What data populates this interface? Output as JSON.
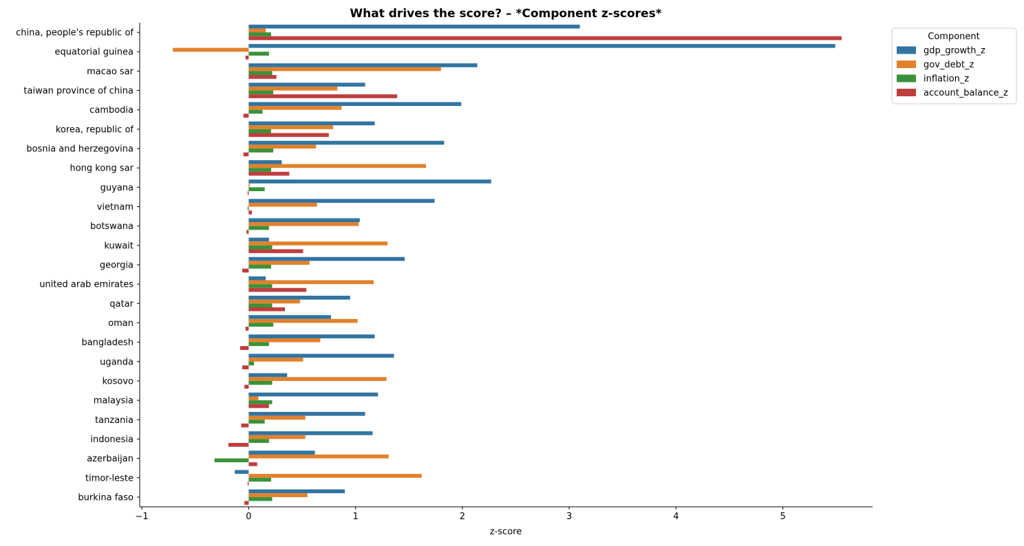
{
  "colors": {
    "gdp_growth_z": "#3274a1",
    "gov_debt_z": "#e1812c",
    "inflation_z": "#3a923a",
    "account_balance_z": "#c03d3e"
  },
  "chart_data": {
    "type": "bar",
    "orientation": "horizontal",
    "title": "What drives the score? – *Component z-scores*",
    "xlabel": "z-score",
    "ylabel": "",
    "xlim": [
      -1.02,
      5.84
    ],
    "xticks": [
      -1,
      0,
      1,
      2,
      3,
      4,
      5
    ],
    "xtick_labels": [
      "−1",
      "0",
      "1",
      "2",
      "3",
      "4",
      "5"
    ],
    "grid": false,
    "legend": {
      "title": "Component",
      "placement": "upper-right-outside"
    },
    "categories": [
      "china, people's republic of",
      "equatorial guinea",
      "macao sar",
      "taiwan province of china",
      "cambodia",
      "korea, republic of",
      "bosnia and herzegovina",
      "hong kong sar",
      "guyana",
      "vietnam",
      "botswana",
      "kuwait",
      "georgia",
      "united arab emirates",
      "qatar",
      "oman",
      "bangladesh",
      "uganda",
      "kosovo",
      "malaysia",
      "tanzania",
      "indonesia",
      "azerbaijan",
      "timor-leste",
      "burkina faso"
    ],
    "series": [
      {
        "name": "gdp_growth_z",
        "values": [
          3.1,
          5.49,
          2.14,
          1.09,
          1.99,
          1.18,
          1.83,
          0.31,
          2.27,
          1.74,
          1.04,
          0.19,
          1.46,
          0.16,
          0.95,
          0.77,
          1.18,
          1.36,
          0.36,
          1.21,
          1.09,
          1.16,
          0.62,
          -0.13,
          0.9
        ]
      },
      {
        "name": "gov_debt_z",
        "values": [
          0.16,
          -0.71,
          1.8,
          0.83,
          0.87,
          0.79,
          0.63,
          1.66,
          0.01,
          0.64,
          1.03,
          1.3,
          0.57,
          1.17,
          0.48,
          1.02,
          0.67,
          0.51,
          1.29,
          0.09,
          0.53,
          0.53,
          1.31,
          1.62,
          0.55
        ]
      },
      {
        "name": "inflation_z",
        "values": [
          0.21,
          0.19,
          0.22,
          0.23,
          0.13,
          0.21,
          0.23,
          0.21,
          0.15,
          -0.01,
          0.19,
          0.22,
          0.21,
          0.22,
          0.22,
          0.23,
          0.19,
          0.05,
          0.22,
          0.22,
          0.15,
          0.19,
          -0.32,
          0.21,
          0.22
        ]
      },
      {
        "name": "account_balance_z",
        "values": [
          5.55,
          -0.03,
          0.26,
          1.39,
          -0.05,
          0.75,
          -0.05,
          0.38,
          -0.01,
          0.03,
          -0.02,
          0.51,
          -0.06,
          0.54,
          0.34,
          -0.03,
          -0.08,
          -0.06,
          -0.04,
          0.19,
          -0.07,
          -0.19,
          0.08,
          -0.01,
          -0.04
        ]
      }
    ]
  }
}
